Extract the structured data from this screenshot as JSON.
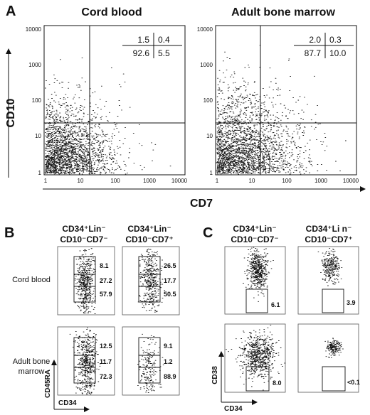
{
  "panel_a": {
    "letter": "A",
    "titles": [
      "Cord blood",
      "Adult bone marrow"
    ],
    "y_label": "CD10",
    "x_label": "CD7",
    "y_ticks": [
      "10000",
      "1000",
      "100",
      "10",
      "1"
    ],
    "x_ticks": [
      "1",
      "10",
      "100",
      "1000",
      "10000"
    ],
    "plots": [
      {
        "q_tl": "1.5",
        "q_tr": "0.4",
        "q_bl": "92.6",
        "q_br": "5.5"
      },
      {
        "q_tl": "2.0",
        "q_tr": "0.3",
        "q_bl": "87.7",
        "q_br": "10.0"
      }
    ]
  },
  "panel_b": {
    "letter": "B",
    "col_headers": [
      {
        "line1": "CD34⁺Lin⁻",
        "line2": "CD10⁻CD7⁻"
      },
      {
        "line1": "CD34⁺Lin⁻",
        "line2": "CD10⁻CD7⁺"
      }
    ],
    "row_labels": [
      {
        "line1": "Cord blood",
        "line2": ""
      },
      {
        "line1": "Adult bone",
        "line2": "marrow"
      }
    ],
    "values": [
      [
        "8.1",
        "27.2",
        "57.9"
      ],
      [
        "26.5",
        "17.7",
        "50.5"
      ],
      [
        "12.5",
        "11.7",
        "72.3"
      ],
      [
        "9.1",
        "1.2",
        "88.9"
      ]
    ],
    "y_axis": "CD45RA",
    "x_axis": "CD34"
  },
  "panel_c": {
    "letter": "C",
    "col_headers": [
      {
        "line1": "CD34⁺Lin⁻",
        "line2": "CD10⁻CD7⁻"
      },
      {
        "line1": "CD34⁺Li n⁻",
        "line2": "CD10⁻CD7⁺"
      }
    ],
    "values": [
      "6.1",
      "3.9",
      "8.0",
      "<0.1"
    ],
    "y_axis": "CD38",
    "x_axis": "CD34"
  }
}
